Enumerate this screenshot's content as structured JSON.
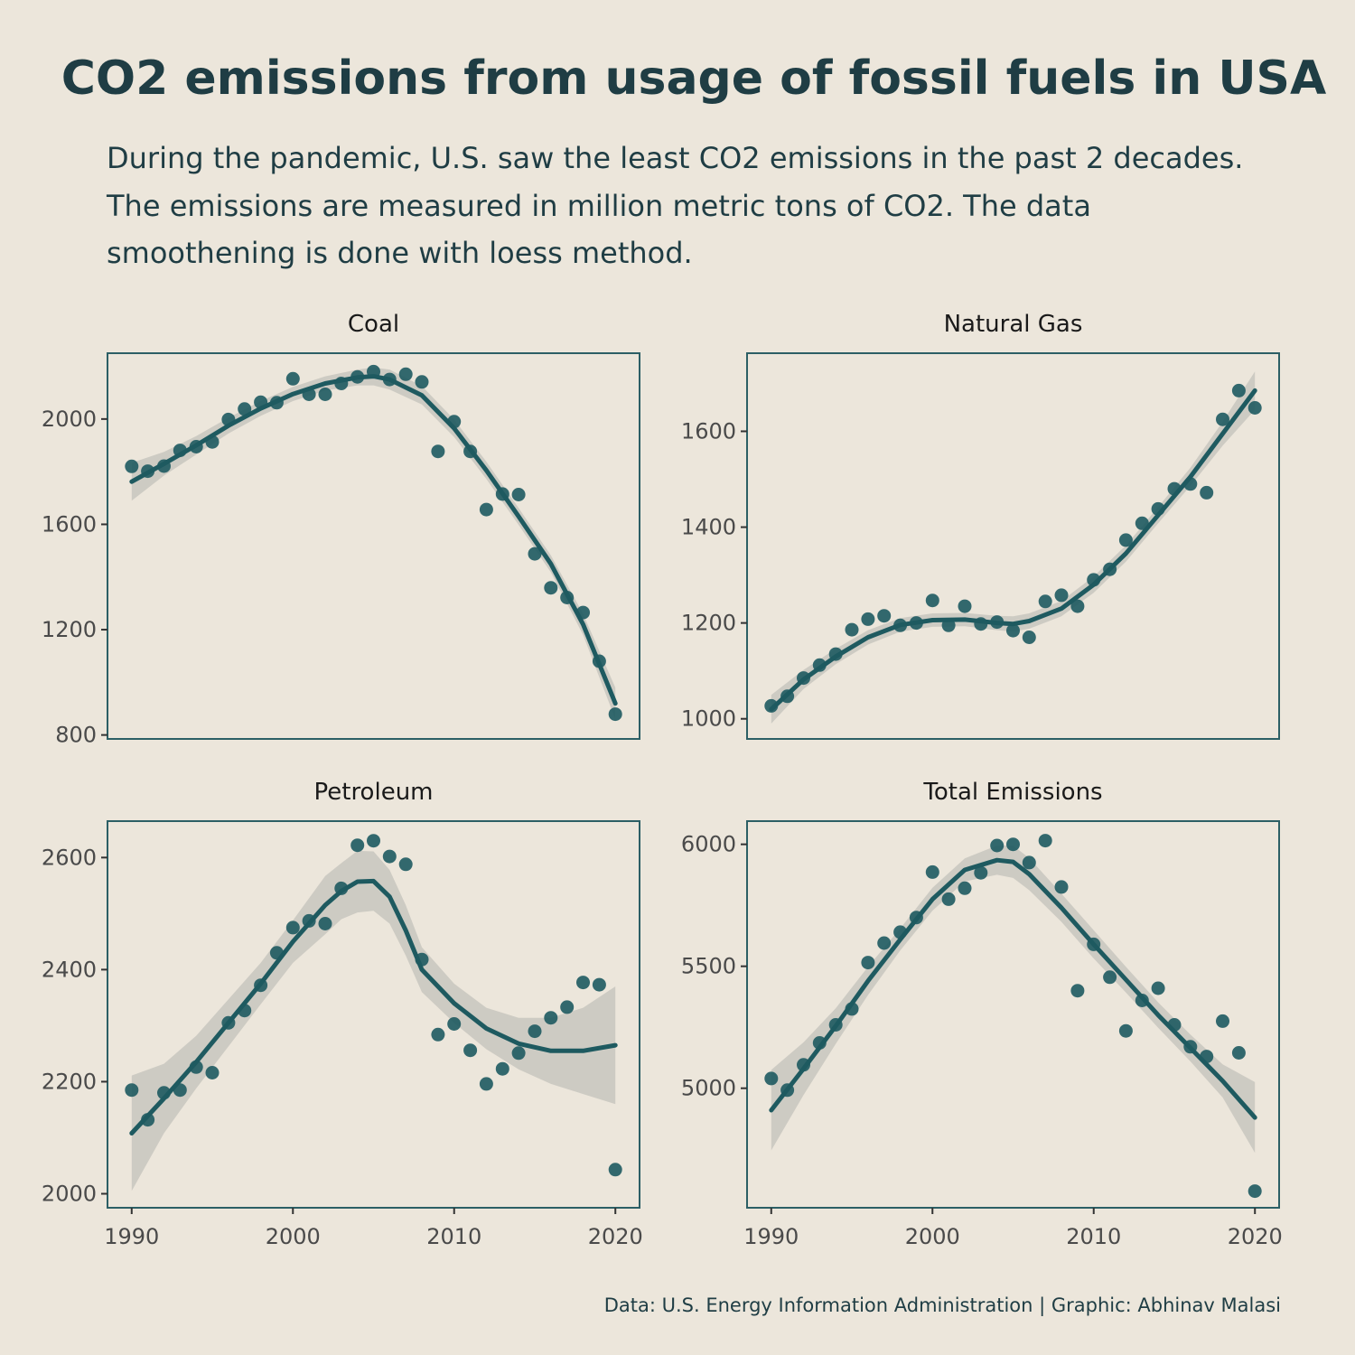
{
  "title": "CO2 emissions from usage of fossil fuels in USA",
  "subtitle_lines": [
    "During the pandemic, U.S. saw the least CO2 emissions in the past 2 decades.",
    "The emissions are measured in million metric tons of CO2. The data",
    "smoothening is done with loess method."
  ],
  "caption": "Data: U.S. Energy Information Administration | Graphic: Abhinav Malasi",
  "colors": {
    "background": "#ece6db",
    "points": "#1e5a60",
    "line": "#1e5a60",
    "ribbon": "#c8c5be",
    "panel_border": "#2c5f65",
    "text": "#1f3d44"
  },
  "chart_data": [
    {
      "type": "scatter",
      "title": "Coal",
      "smoothing": "loess",
      "x_ticks": [
        1990,
        2000,
        2010,
        2020
      ],
      "show_x_ticks": false,
      "y_ticks": [
        800,
        1200,
        1600,
        2000
      ],
      "xlim": [
        1988.5,
        2021.5
      ],
      "ylim": [
        785,
        2250
      ],
      "x": [
        1990,
        1991,
        1992,
        1993,
        1994,
        1995,
        1996,
        1997,
        1998,
        1999,
        2000,
        2001,
        2002,
        2003,
        2004,
        2005,
        2006,
        2007,
        2008,
        2009,
        2010,
        2011,
        2012,
        2013,
        2014,
        2015,
        2016,
        2017,
        2018,
        2019,
        2020
      ],
      "y": [
        1820,
        1802,
        1821,
        1881,
        1895,
        1913,
        1998,
        2038,
        2064,
        2062,
        2153,
        2094,
        2094,
        2135,
        2160,
        2180,
        2150,
        2170,
        2141,
        1877,
        1990,
        1877,
        1656,
        1715,
        1713,
        1488,
        1359,
        1322,
        1265,
        1080,
        879
      ],
      "smooth_x": [
        1990,
        1992,
        1994,
        1996,
        1998,
        2000,
        2002,
        2004,
        2005,
        2006,
        2008,
        2010,
        2012,
        2014,
        2016,
        2018,
        2020
      ],
      "smooth_y": [
        1762,
        1830,
        1900,
        1975,
        2040,
        2095,
        2135,
        2158,
        2162,
        2150,
        2090,
        1965,
        1805,
        1630,
        1450,
        1220,
        920
      ],
      "smooth_lo": [
        1690,
        1785,
        1865,
        1945,
        2012,
        2068,
        2108,
        2128,
        2128,
        2112,
        2055,
        1932,
        1772,
        1598,
        1418,
        1180,
        860
      ],
      "smooth_hi": [
        1834,
        1875,
        1935,
        2005,
        2068,
        2122,
        2162,
        2188,
        2196,
        2188,
        2125,
        1998,
        1838,
        1662,
        1482,
        1260,
        980
      ]
    },
    {
      "type": "scatter",
      "title": "Natural Gas",
      "smoothing": "loess",
      "x_ticks": [
        1990,
        2000,
        2010,
        2020
      ],
      "show_x_ticks": false,
      "y_ticks": [
        1000,
        1200,
        1400,
        1600
      ],
      "xlim": [
        1988.5,
        2021.5
      ],
      "ylim": [
        958,
        1763
      ],
      "x": [
        1990,
        1991,
        1992,
        1993,
        1994,
        1995,
        1996,
        1997,
        1998,
        1999,
        2000,
        2001,
        2002,
        2003,
        2004,
        2005,
        2006,
        2007,
        2008,
        2009,
        2010,
        2011,
        2012,
        2013,
        2014,
        2015,
        2016,
        2017,
        2018,
        2019,
        2020
      ],
      "y": [
        1027,
        1047,
        1085,
        1112,
        1135,
        1186,
        1208,
        1215,
        1195,
        1200,
        1247,
        1195,
        1235,
        1198,
        1202,
        1184,
        1170,
        1245,
        1258,
        1235,
        1290,
        1312,
        1373,
        1408,
        1438,
        1480,
        1490,
        1472,
        1625,
        1685,
        1649
      ],
      "smooth_x": [
        1990,
        1992,
        1994,
        1996,
        1998,
        2000,
        2002,
        2004,
        2005,
        2006,
        2008,
        2010,
        2012,
        2014,
        2016,
        2018,
        2020
      ],
      "smooth_y": [
        1020,
        1082,
        1130,
        1170,
        1196,
        1206,
        1207,
        1200,
        1198,
        1204,
        1230,
        1280,
        1345,
        1425,
        1505,
        1595,
        1685
      ],
      "smooth_lo": [
        990,
        1062,
        1114,
        1155,
        1182,
        1192,
        1193,
        1185,
        1182,
        1188,
        1214,
        1263,
        1328,
        1408,
        1486,
        1570,
        1645
      ],
      "smooth_hi": [
        1050,
        1102,
        1146,
        1185,
        1210,
        1220,
        1221,
        1215,
        1214,
        1220,
        1246,
        1297,
        1362,
        1442,
        1524,
        1620,
        1725
      ]
    },
    {
      "type": "scatter",
      "title": "Petroleum",
      "smoothing": "loess",
      "x_ticks": [
        1990,
        2000,
        2010,
        2020
      ],
      "show_x_ticks": true,
      "y_ticks": [
        2000,
        2200,
        2400,
        2600
      ],
      "xlim": [
        1988.5,
        2021.5
      ],
      "ylim": [
        1975,
        2665
      ],
      "x": [
        1990,
        1991,
        1992,
        1993,
        1994,
        1995,
        1996,
        1997,
        1998,
        1999,
        2000,
        2001,
        2002,
        2003,
        2004,
        2005,
        2006,
        2007,
        2008,
        2009,
        2010,
        2011,
        2012,
        2013,
        2014,
        2015,
        2016,
        2017,
        2018,
        2019,
        2020
      ],
      "y": [
        2185,
        2132,
        2180,
        2185,
        2226,
        2216,
        2305,
        2327,
        2372,
        2430,
        2475,
        2487,
        2482,
        2545,
        2622,
        2630,
        2602,
        2588,
        2418,
        2284,
        2303,
        2256,
        2196,
        2223,
        2251,
        2290,
        2314,
        2333,
        2377,
        2373,
        2043
      ],
      "smooth_x": [
        1990,
        1992,
        1994,
        1996,
        1998,
        2000,
        2002,
        2003,
        2004,
        2005,
        2006,
        2007,
        2008,
        2010,
        2012,
        2014,
        2016,
        2018,
        2020
      ],
      "smooth_y": [
        2108,
        2170,
        2235,
        2305,
        2375,
        2450,
        2515,
        2540,
        2557,
        2558,
        2530,
        2470,
        2400,
        2340,
        2295,
        2268,
        2255,
        2255,
        2265
      ],
      "smooth_lo": [
        2005,
        2108,
        2188,
        2263,
        2338,
        2412,
        2463,
        2490,
        2502,
        2505,
        2482,
        2425,
        2360,
        2305,
        2258,
        2222,
        2196,
        2178,
        2160
      ],
      "smooth_hi": [
        2211,
        2232,
        2282,
        2347,
        2412,
        2488,
        2567,
        2590,
        2612,
        2611,
        2578,
        2515,
        2440,
        2375,
        2332,
        2314,
        2314,
        2332,
        2370
      ]
    },
    {
      "type": "scatter",
      "title": "Total Emissions",
      "smoothing": "loess",
      "x_ticks": [
        1990,
        2000,
        2010,
        2020
      ],
      "show_x_ticks": true,
      "y_ticks": [
        5000,
        5500,
        6000
      ],
      "xlim": [
        1988.5,
        2021.5
      ],
      "ylim": [
        4510,
        6095
      ],
      "x": [
        1990,
        1991,
        1992,
        1993,
        1994,
        1995,
        1996,
        1997,
        1998,
        1999,
        2000,
        2001,
        2002,
        2003,
        2004,
        2005,
        2006,
        2007,
        2008,
        2009,
        2010,
        2011,
        2012,
        2013,
        2014,
        2015,
        2016,
        2017,
        2018,
        2019,
        2020
      ],
      "y": [
        5040,
        4992,
        5096,
        5186,
        5260,
        5325,
        5515,
        5595,
        5640,
        5700,
        5886,
        5775,
        5820,
        5883,
        5995,
        6000,
        5925,
        6015,
        5825,
        5400,
        5590,
        5455,
        5235,
        5360,
        5410,
        5260,
        5170,
        5130,
        5275,
        5145,
        4578
      ],
      "smooth_x": [
        1990,
        1992,
        1994,
        1996,
        1998,
        2000,
        2002,
        2004,
        2005,
        2006,
        2008,
        2010,
        2012,
        2014,
        2016,
        2018,
        2020
      ],
      "smooth_y": [
        4910,
        5080,
        5255,
        5440,
        5610,
        5775,
        5895,
        5935,
        5928,
        5878,
        5740,
        5590,
        5445,
        5300,
        5165,
        5030,
        4880
      ],
      "smooth_lo": [
        4745,
        4972,
        5182,
        5382,
        5565,
        5728,
        5848,
        5875,
        5862,
        5812,
        5682,
        5532,
        5392,
        5248,
        5110,
        4962,
        4735
      ],
      "smooth_hi": [
        5075,
        5188,
        5328,
        5498,
        5655,
        5822,
        5942,
        5995,
        5994,
        5944,
        5798,
        5648,
        5498,
        5352,
        5220,
        5098,
        5025
      ]
    }
  ]
}
